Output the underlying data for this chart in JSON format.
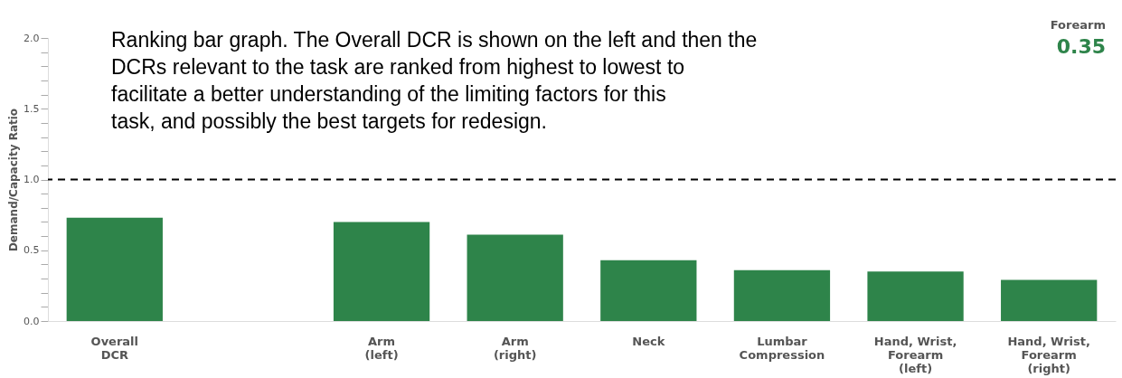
{
  "chart_data": {
    "type": "bar",
    "categories": [
      "Overall DCR",
      null,
      "Arm (left)",
      "Arm (right)",
      "Neck",
      "Lumbar Compression",
      "Hand, Wrist, Forearm (left)",
      "Hand, Wrist, Forearm (right)"
    ],
    "series": [
      {
        "color": "#2e844a",
        "values": [
          0.73,
          null,
          0.7,
          0.61,
          0.43,
          0.36,
          0.35,
          0.29
        ]
      }
    ],
    "ylabel": "Demand/Capacity Ratio",
    "ylim": [
      0,
      2.0
    ],
    "yticks": [
      {
        "value": 0,
        "label": "0.0"
      },
      {
        "value": 0.1,
        "label": null
      },
      {
        "value": 0.2,
        "label": null
      },
      {
        "value": 0.3,
        "label": null
      },
      {
        "value": 0.4,
        "label": null
      },
      {
        "value": 0.5,
        "label": "0.5"
      },
      {
        "value": 0.6,
        "label": null
      },
      {
        "value": 0.7,
        "label": null
      },
      {
        "value": 0.8,
        "label": null
      },
      {
        "value": 0.9,
        "label": null
      },
      {
        "value": 1.0,
        "label": "1.0"
      },
      {
        "value": 1.1,
        "label": null
      },
      {
        "value": 1.2,
        "label": null
      },
      {
        "value": 1.3,
        "label": null
      },
      {
        "value": 1.4,
        "label": null
      },
      {
        "value": 1.5,
        "label": "1.5"
      },
      {
        "value": 1.6,
        "label": null
      },
      {
        "value": 1.7,
        "label": null
      },
      {
        "value": 1.8,
        "label": null
      },
      {
        "value": 1.9,
        "label": null
      },
      {
        "value": 2.0,
        "label": "2.0"
      }
    ],
    "ref_lines": [
      {
        "axis": "y",
        "value": 1.0,
        "color": "#000000",
        "line_style": "dashed"
      }
    ],
    "grid": false,
    "annotations": [
      "Ranking bar graph. The Overall DCR is shown on the left and then the DCRs relevant to the task are ranked from highest to lowest to facilitate a better understanding of the limiting factors for this task, and possibly the best targets for redesign.",
      "Forearm",
      "0.35"
    ]
  }
}
